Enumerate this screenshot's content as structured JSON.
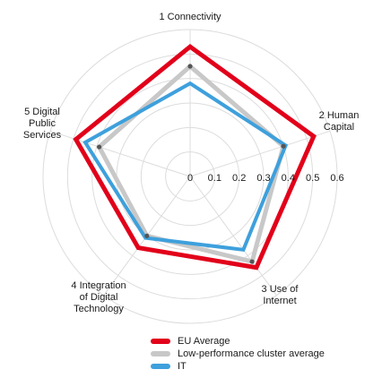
{
  "chart_data": {
    "type": "radar",
    "categories": [
      [
        "1 Connectivity"
      ],
      [
        "2 Human",
        "Capital"
      ],
      [
        "3 Use of",
        "Internet"
      ],
      [
        "4 Integration",
        "of Digital",
        "Technology"
      ],
      [
        "5 Digital",
        "Public",
        "Services"
      ]
    ],
    "ticks": [
      "0",
      "0.1",
      "0.2",
      "0.3",
      "0.4",
      "0.5",
      "0.6"
    ],
    "range": [
      0,
      0.6
    ],
    "grid": true,
    "series": [
      {
        "name": "EU Average",
        "color": "#e2001a",
        "values": [
          0.53,
          0.53,
          0.46,
          0.36,
          0.49
        ]
      },
      {
        "name": "Low-performance cluster average",
        "color": "#c8c8c8",
        "values": [
          0.45,
          0.4,
          0.43,
          0.3,
          0.39
        ]
      },
      {
        "name": "IT",
        "color": "#3ea0dc",
        "values": [
          0.38,
          0.41,
          0.37,
          0.31,
          0.45
        ]
      }
    ],
    "legend_position": "bottom"
  }
}
